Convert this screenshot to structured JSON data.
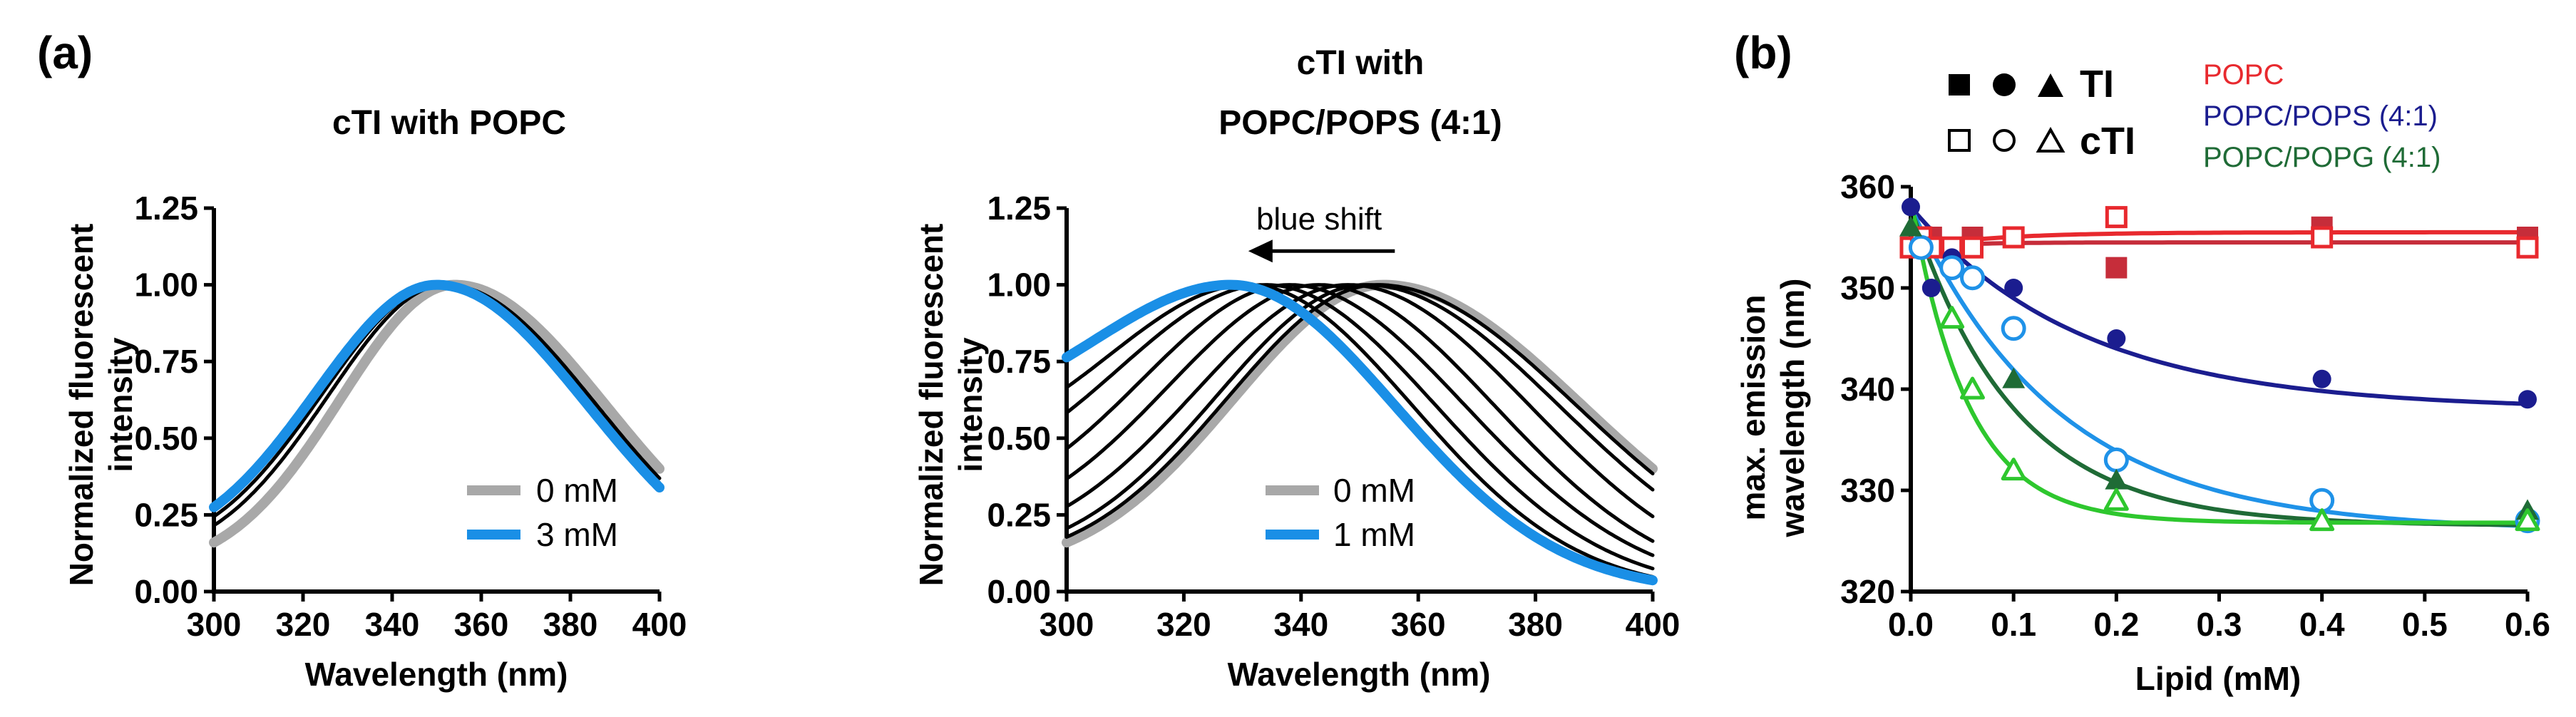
{
  "colors": {
    "gray": "#a8a8a8",
    "blue": "#1a8fe6",
    "black": "#000000",
    "popc_red": "#e8292e",
    "popc_red_dark": "#c62d3a",
    "pops_navy": "#1b1d8f",
    "pops_light": "#1f92e8",
    "popg_green": "#2ec72e",
    "popg_dark": "#1f6b36"
  },
  "panel_labels": {
    "a": "(a)",
    "b": "(b)"
  },
  "chart_data": [
    {
      "id": "a1",
      "type": "line",
      "title_lines": [
        "cTI with POPC"
      ],
      "xlabel": "Wavelength (nm)",
      "ylabel_lines": [
        "Normalized fluorescent",
        "intensity"
      ],
      "xlim": [
        300,
        400
      ],
      "ylim": [
        0,
        1.25
      ],
      "xticks": [
        300,
        320,
        340,
        360,
        380,
        400
      ],
      "xtick_labels": [
        "300",
        "320",
        "340",
        "360",
        "380",
        "400"
      ],
      "yticks": [
        0,
        0.25,
        0.5,
        0.75,
        1.0,
        1.25
      ],
      "ytick_labels": [
        "0.00",
        "0.25",
        "0.50",
        "0.75",
        "1.00",
        "1.25"
      ],
      "series": [
        {
          "name": "0 mM",
          "color": "gray",
          "peak": 354,
          "sl": 26,
          "sr": 34,
          "left_floor": 0.05,
          "style": "thick"
        },
        {
          "name": "intermediate",
          "color": "black",
          "peak": 352,
          "sl": 27,
          "sr": 34,
          "left_floor": 0.07,
          "style": "thin"
        },
        {
          "name": "intermediate",
          "color": "black",
          "peak": 351,
          "sl": 27.5,
          "sr": 34,
          "left_floor": 0.08,
          "style": "thin"
        },
        {
          "name": "3 mM",
          "color": "blue",
          "peak": 350,
          "sl": 28,
          "sr": 34,
          "left_floor": 0.09,
          "style": "thick"
        }
      ],
      "legend": [
        {
          "label": "0 mM",
          "color": "gray"
        },
        {
          "label": "3 mM",
          "color": "blue"
        }
      ]
    },
    {
      "id": "a2",
      "type": "line",
      "title_lines": [
        "cTI with",
        "POPC/POPS (4:1)"
      ],
      "xlabel": "Wavelength (nm)",
      "ylabel_lines": [
        "Normalized fluorescent",
        "intensity"
      ],
      "xlim": [
        300,
        400
      ],
      "ylim": [
        0,
        1.25
      ],
      "xticks": [
        300,
        320,
        340,
        360,
        380,
        400
      ],
      "xtick_labels": [
        "300",
        "320",
        "340",
        "360",
        "380",
        "400"
      ],
      "yticks": [
        0,
        0.25,
        0.5,
        0.75,
        1.0,
        1.25
      ],
      "ytick_labels": [
        "0.00",
        "0.25",
        "0.50",
        "0.75",
        "1.00",
        "1.25"
      ],
      "annotation": "blue shift",
      "annotation_arrow": {
        "from": 356,
        "to": 331,
        "y": 1.11
      },
      "series": [
        {
          "name": "0 mM",
          "color": "gray",
          "peak": 354,
          "sl": 26,
          "sr": 34,
          "left_floor": 0.05,
          "style": "thick"
        },
        {
          "name": "intermediate",
          "color": "black",
          "peak": 353,
          "sl": 26,
          "sr": 34,
          "left_floor": 0.06,
          "style": "thin"
        },
        {
          "name": "intermediate",
          "color": "black",
          "peak": 351,
          "sl": 26,
          "sr": 33,
          "left_floor": 0.07,
          "style": "thin"
        },
        {
          "name": "intermediate",
          "color": "black",
          "peak": 348,
          "sl": 27,
          "sr": 31,
          "left_floor": 0.09,
          "style": "thin"
        },
        {
          "name": "intermediate",
          "color": "black",
          "peak": 343,
          "sl": 27,
          "sr": 30,
          "left_floor": 0.12,
          "style": "thin"
        },
        {
          "name": "intermediate",
          "color": "black",
          "peak": 338,
          "sl": 27,
          "sr": 30,
          "left_floor": 0.15,
          "style": "thin"
        },
        {
          "name": "intermediate",
          "color": "black",
          "peak": 334,
          "sl": 28,
          "sr": 29,
          "left_floor": 0.2,
          "style": "thin"
        },
        {
          "name": "intermediate",
          "color": "black",
          "peak": 331,
          "sl": 28,
          "sr": 28,
          "left_floor": 0.27,
          "style": "thin"
        },
        {
          "name": "1 mM",
          "color": "blue",
          "peak": 328,
          "sl": 30,
          "sr": 28,
          "left_floor": 0.33,
          "style": "thick"
        }
      ],
      "legend": [
        {
          "label": "0 mM",
          "color": "gray"
        },
        {
          "label": "1 mM",
          "color": "blue"
        }
      ]
    },
    {
      "id": "b",
      "type": "scatter",
      "xlabel": "Lipid (mM)",
      "ylabel_lines": [
        "max. emission",
        "wavelength (nm)"
      ],
      "xlim": [
        0,
        0.6
      ],
      "ylim": [
        320,
        360
      ],
      "xticks": [
        0,
        0.1,
        0.2,
        0.3,
        0.4,
        0.5,
        0.6
      ],
      "xtick_labels": [
        "0.0",
        "0.1",
        "0.2",
        "0.3",
        "0.4",
        "0.5",
        "0.6"
      ],
      "yticks": [
        320,
        330,
        340,
        350,
        360
      ],
      "ytick_labels": [
        "320",
        "330",
        "340",
        "350",
        "360"
      ],
      "shape_legend": [
        {
          "label": "TI",
          "filled": true
        },
        {
          "label": "cTI",
          "filled": false
        }
      ],
      "lipid_legend": [
        {
          "label": "POPC",
          "color": "popc_red"
        },
        {
          "label": "POPC/POPS (4:1)",
          "color": "pops_navy"
        },
        {
          "label": "POPC/POPG (4:1)",
          "color": "popg_dark"
        }
      ],
      "series": [
        {
          "name": "TI POPC",
          "marker": "square",
          "filled": true,
          "color": "popc_red_dark",
          "x": [
            0,
            0.01,
            0.02,
            0.04,
            0.06,
            0.1,
            0.2,
            0.4,
            0.6
          ],
          "y": [
            354,
            354,
            355,
            354,
            355,
            355,
            352,
            356,
            355
          ],
          "fit": {
            "ymin": 354.5,
            "drop": -0.5,
            "k": 20
          }
        },
        {
          "name": "cTI POPC",
          "marker": "square",
          "filled": false,
          "color": "popc_red",
          "x": [
            0,
            0.01,
            0.02,
            0.04,
            0.06,
            0.1,
            0.2,
            0.4,
            0.6
          ],
          "y": [
            354,
            355,
            354,
            354,
            354,
            355,
            357,
            355,
            354
          ],
          "fit": {
            "ymin": 355.5,
            "drop": -1.5,
            "k": 12
          }
        },
        {
          "name": "TI POPC/POPS",
          "marker": "circle",
          "filled": true,
          "color": "pops_navy",
          "x": [
            0,
            0.02,
            0.04,
            0.1,
            0.2,
            0.4,
            0.6
          ],
          "y": [
            358,
            350,
            353,
            350,
            345,
            341,
            339
          ],
          "fit": {
            "ymin": 338,
            "drop": 20,
            "k": 6
          }
        },
        {
          "name": "cTI POPC/POPS",
          "marker": "circle",
          "filled": false,
          "color": "pops_light",
          "x": [
            0.01,
            0.04,
            0.06,
            0.1,
            0.2,
            0.4,
            0.6
          ],
          "y": [
            354,
            352,
            351,
            346,
            333,
            329,
            327
          ],
          "fit": {
            "ymin": 326,
            "drop": 32,
            "k": 7
          }
        },
        {
          "name": "TI POPC/POPG",
          "marker": "triangle",
          "filled": true,
          "color": "popg_dark",
          "x": [
            0,
            0.1,
            0.2,
            0.4,
            0.6
          ],
          "y": [
            356,
            341,
            331,
            327,
            328
          ],
          "fit": {
            "ymin": 326.5,
            "drop": 31.5,
            "k": 10
          }
        },
        {
          "name": "cTI POPC/POPG",
          "marker": "triangle",
          "filled": false,
          "color": "popg_green",
          "x": [
            0.04,
            0.06,
            0.1,
            0.2,
            0.4,
            0.6
          ],
          "y": [
            347,
            340,
            332,
            329,
            327,
            327
          ],
          "fit": {
            "ymin": 326.8,
            "drop": 32,
            "k": 18
          }
        }
      ]
    }
  ]
}
